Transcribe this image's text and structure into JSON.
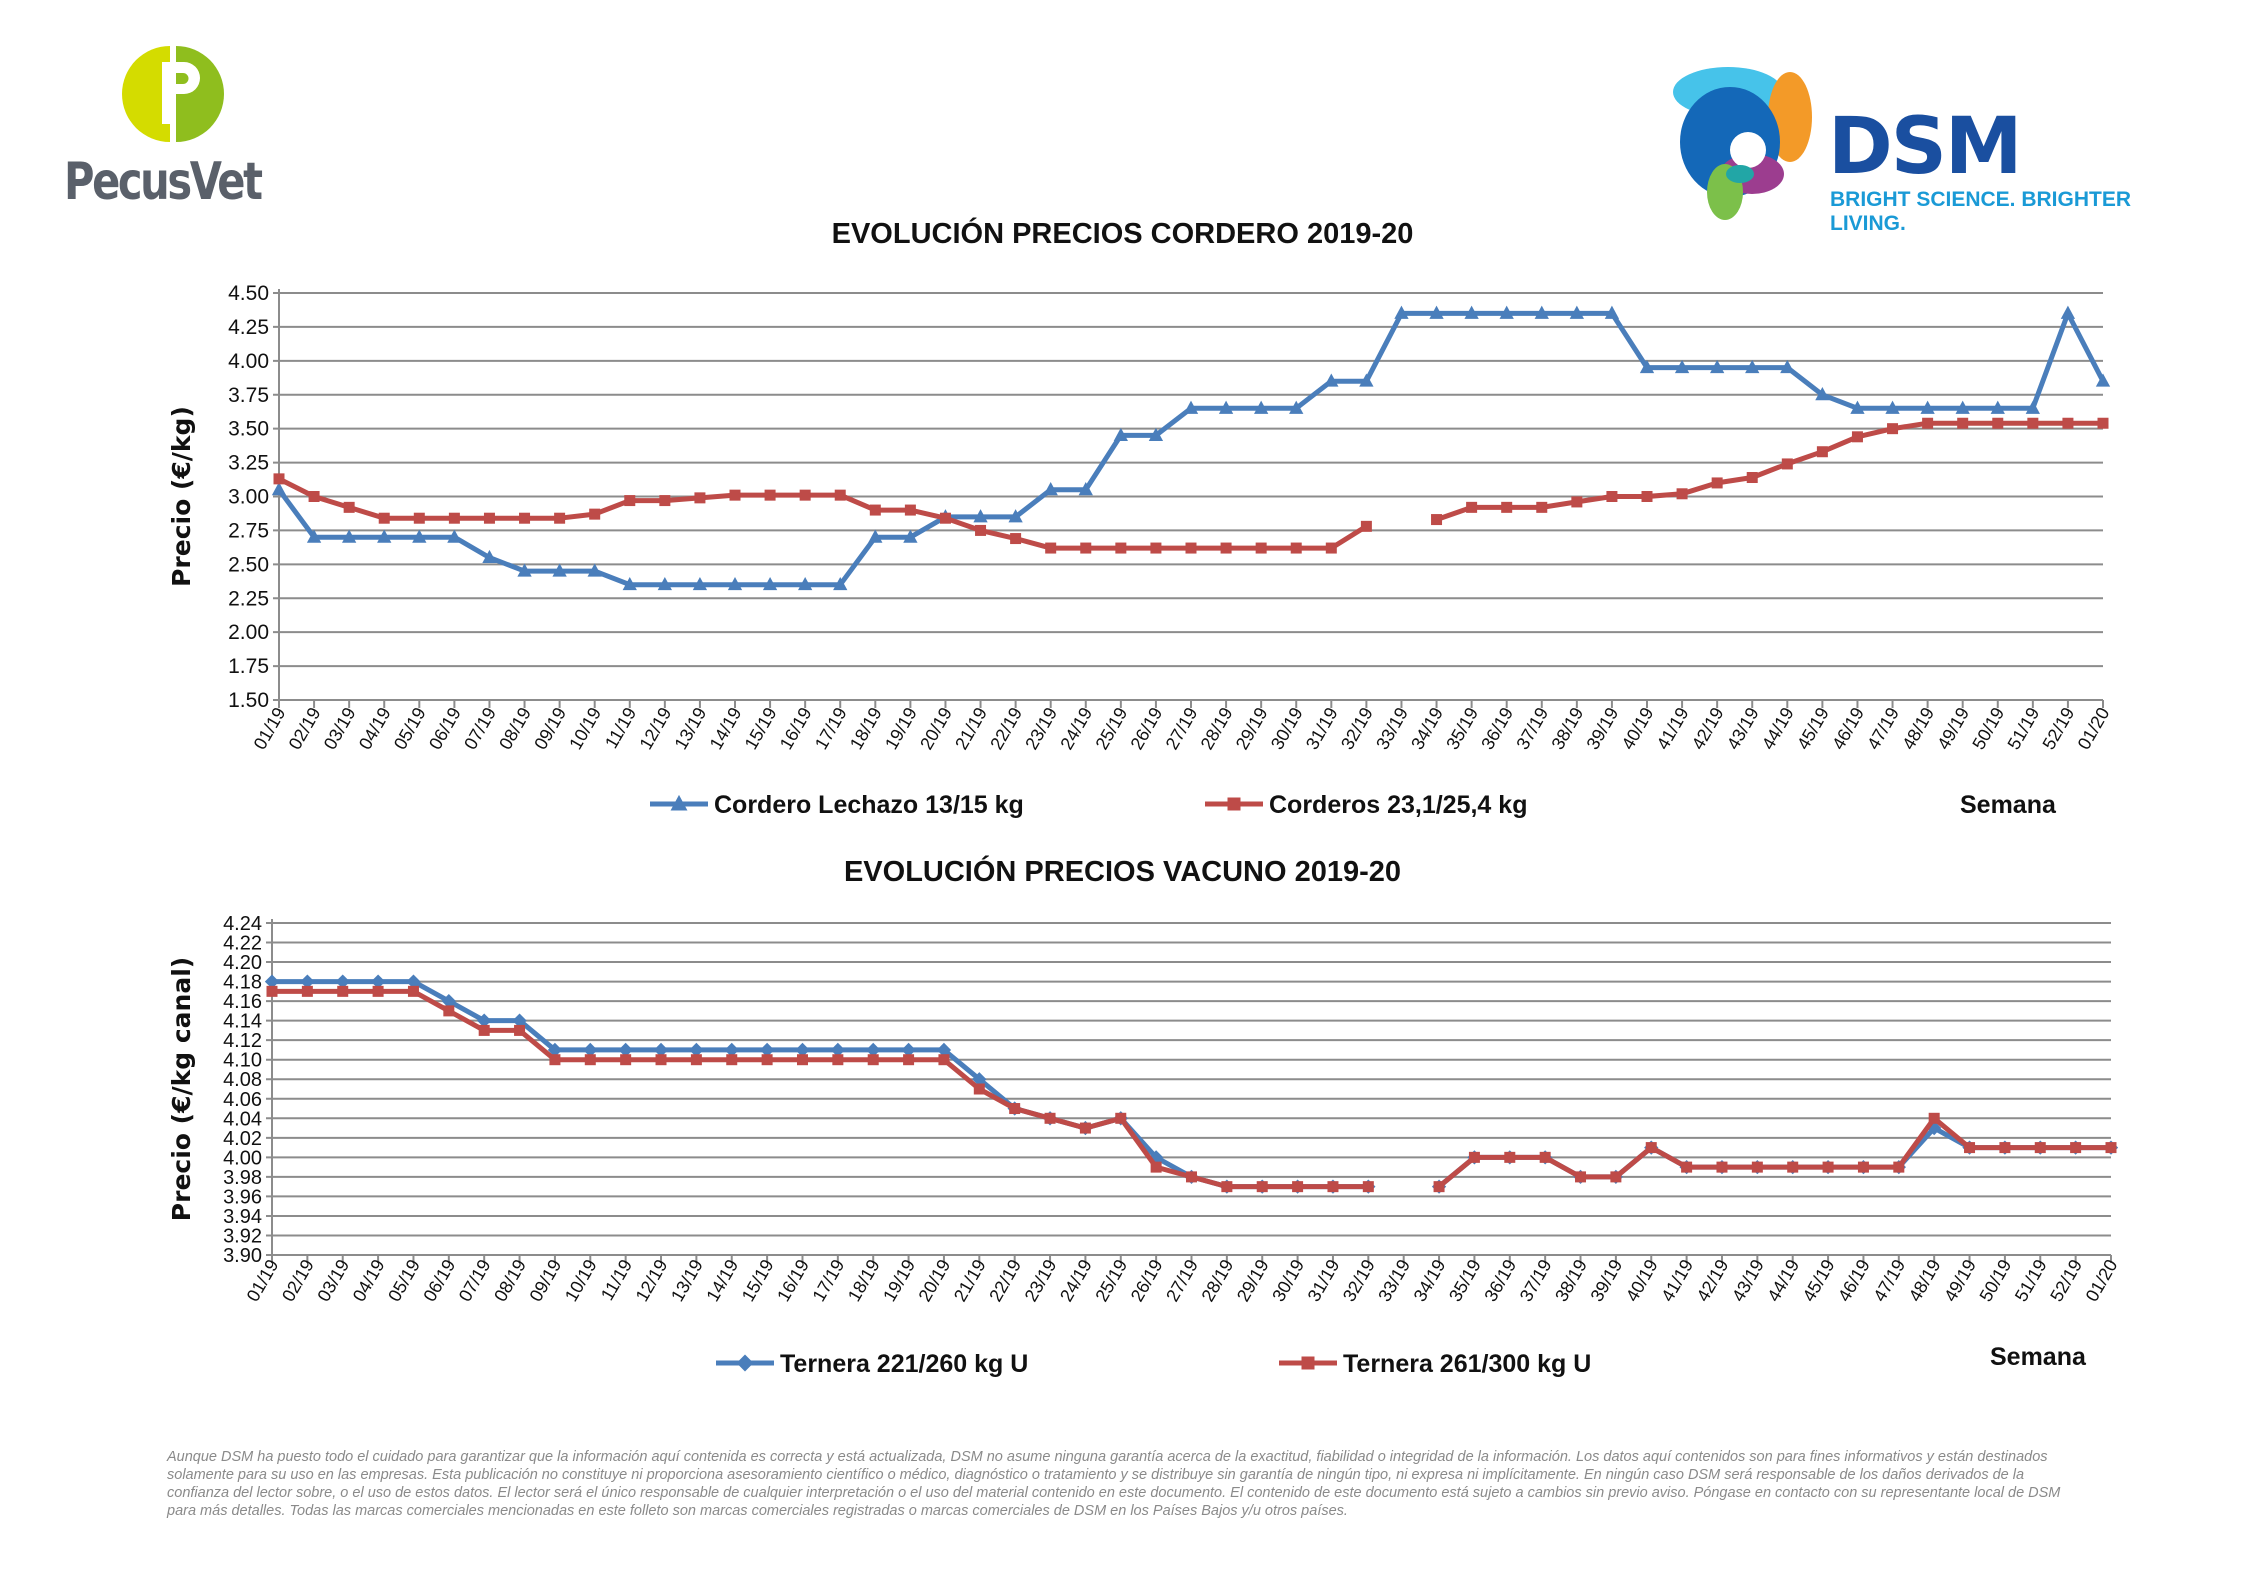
{
  "logos": {
    "pecusvet": "PecusVet",
    "dsm": "DSM",
    "dsm_tagline": "BRIGHT SCIENCE. BRIGHTER LIVING."
  },
  "colors": {
    "blue": "#4a7ebb",
    "red": "#be4b48",
    "grid": "#8c8c8c"
  },
  "chart_data": [
    {
      "type": "line",
      "title": "EVOLUCIÓN PRECIOS CORDERO 2019-20",
      "xlabel": "Semana",
      "ylabel": "Precio (€/kg)",
      "ylim": [
        1.5,
        4.5
      ],
      "ytick_step": 0.25,
      "yticks": [
        "1.50",
        "1.75",
        "2.00",
        "2.25",
        "2.50",
        "2.75",
        "3.00",
        "3.25",
        "3.50",
        "3.75",
        "4.00",
        "4.25",
        "4.50"
      ],
      "grid": true,
      "legend_position": "bottom",
      "categories": [
        "01/19",
        "02/19",
        "03/19",
        "04/19",
        "05/19",
        "06/19",
        "07/19",
        "08/19",
        "09/19",
        "10/19",
        "11/19",
        "12/19",
        "13/19",
        "14/19",
        "15/19",
        "16/19",
        "17/19",
        "18/19",
        "19/19",
        "20/19",
        "21/19",
        "22/19",
        "23/19",
        "24/19",
        "25/19",
        "26/19",
        "27/19",
        "28/19",
        "29/19",
        "30/19",
        "31/19",
        "32/19",
        "33/19",
        "34/19",
        "35/19",
        "36/19",
        "37/19",
        "38/19",
        "39/19",
        "40/19",
        "41/19",
        "42/19",
        "43/19",
        "44/19",
        "45/19",
        "46/19",
        "47/19",
        "48/19",
        "49/19",
        "50/19",
        "51/19",
        "52/19",
        "01/20"
      ],
      "series": [
        {
          "name": "Cordero Lechazo 13/15 kg",
          "color": "#4a7ebb",
          "marker": "triangle",
          "values": [
            3.05,
            2.7,
            2.7,
            2.7,
            2.7,
            2.7,
            2.55,
            2.45,
            2.45,
            2.45,
            2.35,
            2.35,
            2.35,
            2.35,
            2.35,
            2.35,
            2.35,
            2.7,
            2.7,
            2.85,
            2.85,
            2.85,
            3.05,
            3.05,
            3.45,
            3.45,
            3.65,
            3.65,
            3.65,
            3.65,
            3.85,
            3.85,
            4.35,
            4.35,
            4.35,
            4.35,
            4.35,
            4.35,
            4.35,
            3.95,
            3.95,
            3.95,
            3.95,
            3.95,
            3.75,
            3.65,
            3.65,
            3.65,
            3.65,
            3.65,
            3.65,
            4.35,
            3.85
          ]
        },
        {
          "name": "Corderos 23,1/25,4 kg",
          "color": "#be4b48",
          "marker": "square",
          "values": [
            3.13,
            3.0,
            2.92,
            2.84,
            2.84,
            2.84,
            2.84,
            2.84,
            2.84,
            2.87,
            2.97,
            2.97,
            2.99,
            3.01,
            3.01,
            3.01,
            3.01,
            2.9,
            2.9,
            2.84,
            2.75,
            2.69,
            2.62,
            2.62,
            2.62,
            2.62,
            2.62,
            2.62,
            2.62,
            2.62,
            2.62,
            2.78,
            null,
            2.83,
            2.92,
            2.92,
            2.92,
            2.96,
            3.0,
            3.0,
            3.02,
            3.1,
            3.14,
            3.24,
            3.33,
            3.44,
            3.5,
            3.54,
            3.54,
            3.54,
            3.54,
            3.54,
            3.54
          ]
        }
      ]
    },
    {
      "type": "line",
      "title": "EVOLUCIÓN PRECIOS VACUNO 2019-20",
      "xlabel": "Semana",
      "ylabel": "Precio (€/kg canal)",
      "ylim": [
        3.9,
        4.24
      ],
      "ytick_step": 0.02,
      "yticks": [
        "3.90",
        "3.92",
        "3.94",
        "3.96",
        "3.98",
        "4.00",
        "4.02",
        "4.04",
        "4.06",
        "4.08",
        "4.10",
        "4.12",
        "4.14",
        "4.16",
        "4.18",
        "4.20",
        "4.22",
        "4.24"
      ],
      "grid": true,
      "legend_position": "bottom",
      "categories": [
        "01/19",
        "02/19",
        "03/19",
        "04/19",
        "05/19",
        "06/19",
        "07/19",
        "08/19",
        "09/19",
        "10/19",
        "11/19",
        "12/19",
        "13/19",
        "14/19",
        "15/19",
        "16/19",
        "17/19",
        "18/19",
        "19/19",
        "20/19",
        "21/19",
        "22/19",
        "23/19",
        "24/19",
        "25/19",
        "26/19",
        "27/19",
        "28/19",
        "29/19",
        "30/19",
        "31/19",
        "32/19",
        "33/19",
        "34/19",
        "35/19",
        "36/19",
        "37/19",
        "38/19",
        "39/19",
        "40/19",
        "41/19",
        "42/19",
        "43/19",
        "44/19",
        "45/19",
        "46/19",
        "47/19",
        "48/19",
        "49/19",
        "50/19",
        "51/19",
        "52/19",
        "01/20"
      ],
      "series": [
        {
          "name": "Ternera 221/260 kg U",
          "color": "#4a7ebb",
          "marker": "diamond",
          "values": [
            4.18,
            4.18,
            4.18,
            4.18,
            4.18,
            4.16,
            4.14,
            4.14,
            4.11,
            4.11,
            4.11,
            4.11,
            4.11,
            4.11,
            4.11,
            4.11,
            4.11,
            4.11,
            4.11,
            4.11,
            4.08,
            4.05,
            4.04,
            4.03,
            4.04,
            4.0,
            3.98,
            3.97,
            3.97,
            3.97,
            3.97,
            3.97,
            null,
            3.97,
            4.0,
            4.0,
            4.0,
            3.98,
            3.98,
            4.01,
            3.99,
            3.99,
            3.99,
            3.99,
            3.99,
            3.99,
            3.99,
            4.03,
            4.01,
            4.01,
            4.01,
            4.01,
            4.01
          ]
        },
        {
          "name": "Ternera 261/300 kg U",
          "color": "#be4b48",
          "marker": "square",
          "values": [
            4.17,
            4.17,
            4.17,
            4.17,
            4.17,
            4.15,
            4.13,
            4.13,
            4.1,
            4.1,
            4.1,
            4.1,
            4.1,
            4.1,
            4.1,
            4.1,
            4.1,
            4.1,
            4.1,
            4.1,
            4.07,
            4.05,
            4.04,
            4.03,
            4.04,
            3.99,
            3.98,
            3.97,
            3.97,
            3.97,
            3.97,
            3.97,
            null,
            3.97,
            4.0,
            4.0,
            4.0,
            3.98,
            3.98,
            4.01,
            3.99,
            3.99,
            3.99,
            3.99,
            3.99,
            3.99,
            3.99,
            4.04,
            4.01,
            4.01,
            4.01,
            4.01,
            4.01
          ]
        }
      ]
    }
  ],
  "footer": "Aunque DSM ha puesto todo el cuidado para garantizar que la información aquí contenida es correcta y está actualizada, DSM no asume ninguna garantía acerca de la exactitud, fiabilidad o integridad de la información. Los datos aquí contenidos son para fines informativos y están destinados solamente para su uso en las empresas. Esta publicación no constituye ni proporciona asesoramiento científico o médico, diagnóstico o tratamiento y se distribuye sin garantía de ningún tipo, ni expresa ni implícitamente. En ningún caso DSM será responsable de los daños derivados de la confianza del lector sobre, o el uso de estos datos. El lector será el único responsable de cualquier interpretación o el uso del material contenido en este documento. El contenido de este documento está sujeto a cambios sin previo aviso. Póngase en contacto con su representante local de DSM para más detalles. Todas las marcas comerciales mencionadas en este folleto son marcas comerciales registradas o marcas comerciales de DSM en los Países Bajos y/u otros países."
}
